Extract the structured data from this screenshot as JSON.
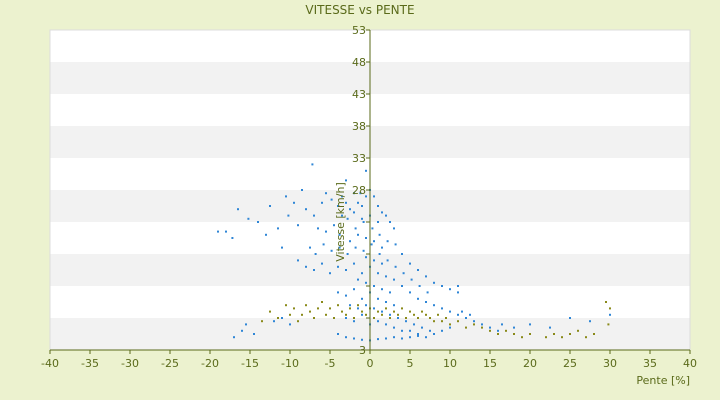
{
  "chart_data": {
    "type": "scatter",
    "title": "VITESSE vs PENTE",
    "xlabel": "Pente [%]",
    "ylabel": "Vitesse [km/h]",
    "xlim": [
      -40,
      40
    ],
    "ylim": [
      3,
      53
    ],
    "x_ticks": [
      -40,
      -35,
      -30,
      -25,
      -20,
      -15,
      -10,
      -5,
      0,
      5,
      10,
      15,
      20,
      25,
      30,
      35,
      40
    ],
    "y_ticks": [
      3,
      8,
      13,
      18,
      23,
      28,
      33,
      38,
      43,
      48,
      53
    ],
    "x_tick_labels": [
      "-40",
      "-35",
      "-30",
      "-25",
      "-20",
      "-15",
      "-10",
      "-5",
      "0",
      "5",
      "10",
      "15",
      "20",
      "25",
      "30",
      "35",
      "40"
    ],
    "y_tick_labels": [
      "3",
      "",
      "",
      "",
      "",
      "28",
      "33",
      "38",
      "43",
      "48",
      "53"
    ],
    "grid": "horizontal alternating bands",
    "legend": "none",
    "colors": {
      "background": "#ecf2cf",
      "plot_band_light": "#ffffff",
      "plot_band_dark": "#f2f2f2",
      "axis": "#5a6a1a",
      "series_1": "#2f86d6",
      "series_2": "#8a8a1a"
    },
    "series": [
      {
        "values": [
          [
            -0.5,
            31.0
          ],
          [
            -7.2,
            32.0
          ],
          [
            -3.0,
            29.5
          ],
          [
            -1.2,
            27.5
          ],
          [
            -8.5,
            28.0
          ],
          [
            -10.5,
            27.0
          ],
          [
            -12.5,
            25.5
          ],
          [
            -16.5,
            25.0
          ],
          [
            -15.2,
            23.5
          ],
          [
            -18.0,
            21.5
          ],
          [
            -17.2,
            20.5
          ],
          [
            -19.0,
            21.5
          ],
          [
            -14.0,
            23.0
          ],
          [
            -13.0,
            21.0
          ],
          [
            -11.5,
            22.0
          ],
          [
            -9.5,
            26.0
          ],
          [
            -10.2,
            24.0
          ],
          [
            -11.0,
            19.0
          ],
          [
            -9.0,
            22.5
          ],
          [
            -8.0,
            25.0
          ],
          [
            -7.0,
            24.0
          ],
          [
            -6.0,
            26.0
          ],
          [
            -5.5,
            27.5
          ],
          [
            -4.8,
            26.5
          ],
          [
            -4.0,
            25.5
          ],
          [
            -3.5,
            27.0
          ],
          [
            -3.0,
            26.0
          ],
          [
            -2.5,
            25.0
          ],
          [
            -2.0,
            27.5
          ],
          [
            -1.5,
            26.0
          ],
          [
            -1.0,
            25.5
          ],
          [
            -0.5,
            27.0
          ],
          [
            0.0,
            28.0
          ],
          [
            0.5,
            27.0
          ],
          [
            1.0,
            25.5
          ],
          [
            1.5,
            24.5
          ],
          [
            2.0,
            24.0
          ],
          [
            2.5,
            23.0
          ],
          [
            3.0,
            22.0
          ],
          [
            -6.5,
            22.0
          ],
          [
            -5.5,
            21.5
          ],
          [
            -4.5,
            22.5
          ],
          [
            -3.8,
            21.0
          ],
          [
            -2.8,
            23.5
          ],
          [
            -1.8,
            22.0
          ],
          [
            -0.8,
            23.0
          ],
          [
            0.3,
            22.0
          ],
          [
            1.2,
            21.0
          ],
          [
            2.2,
            20.0
          ],
          [
            3.2,
            19.5
          ],
          [
            4.0,
            18.0
          ],
          [
            5.0,
            16.5
          ],
          [
            6.0,
            15.5
          ],
          [
            7.0,
            14.5
          ],
          [
            8.0,
            13.5
          ],
          [
            9.0,
            13.0
          ],
          [
            10.0,
            12.5
          ],
          [
            11.0,
            12.0
          ],
          [
            -7.5,
            19.0
          ],
          [
            -6.8,
            18.0
          ],
          [
            -5.8,
            19.5
          ],
          [
            -4.8,
            18.5
          ],
          [
            -3.8,
            19.0
          ],
          [
            -2.8,
            18.0
          ],
          [
            -1.8,
            19.0
          ],
          [
            -0.8,
            18.5
          ],
          [
            0.2,
            19.5
          ],
          [
            1.2,
            18.0
          ],
          [
            2.2,
            17.0
          ],
          [
            3.2,
            16.0
          ],
          [
            4.2,
            15.0
          ],
          [
            5.2,
            14.0
          ],
          [
            6.2,
            13.0
          ],
          [
            7.2,
            12.0
          ],
          [
            -9.0,
            17.0
          ],
          [
            -8.0,
            16.0
          ],
          [
            -7.0,
            15.5
          ],
          [
            -6.0,
            16.5
          ],
          [
            -5.0,
            15.0
          ],
          [
            -4.0,
            16.0
          ],
          [
            -3.0,
            15.5
          ],
          [
            -2.0,
            16.5
          ],
          [
            -1.0,
            15.0
          ],
          [
            0.0,
            16.0
          ],
          [
            1.0,
            15.0
          ],
          [
            2.0,
            14.5
          ],
          [
            3.0,
            14.0
          ],
          [
            4.0,
            13.0
          ],
          [
            5.0,
            12.0
          ],
          [
            6.0,
            11.0
          ],
          [
            7.0,
            10.5
          ],
          [
            8.0,
            10.0
          ],
          [
            9.0,
            9.5
          ],
          [
            10.0,
            9.0
          ],
          [
            11.0,
            8.5
          ],
          [
            12.0,
            8.0
          ],
          [
            13.0,
            7.5
          ],
          [
            14.0,
            7.0
          ],
          [
            15.0,
            6.5
          ],
          [
            16.0,
            6.0
          ],
          [
            -4.0,
            12.0
          ],
          [
            -3.0,
            11.5
          ],
          [
            -2.0,
            12.5
          ],
          [
            -1.0,
            11.0
          ],
          [
            0.0,
            12.0
          ],
          [
            1.0,
            11.0
          ],
          [
            2.0,
            10.5
          ],
          [
            3.0,
            10.0
          ],
          [
            -3.0,
            8.0
          ],
          [
            -2.0,
            7.5
          ],
          [
            -1.0,
            8.5
          ],
          [
            0.0,
            7.0
          ],
          [
            1.0,
            7.5
          ],
          [
            2.0,
            7.0
          ],
          [
            3.0,
            6.5
          ],
          [
            4.0,
            6.0
          ],
          [
            5.0,
            6.0
          ],
          [
            6.0,
            5.5
          ],
          [
            -4.0,
            5.5
          ],
          [
            -3.0,
            5.0
          ],
          [
            -2.0,
            4.8
          ],
          [
            -1.0,
            4.6
          ],
          [
            0.0,
            4.5
          ],
          [
            1.0,
            4.7
          ],
          [
            2.0,
            4.8
          ],
          [
            3.0,
            5.0
          ],
          [
            4.0,
            4.8
          ],
          [
            5.0,
            5.0
          ],
          [
            6.0,
            5.2
          ],
          [
            7.0,
            5.0
          ],
          [
            8.0,
            5.5
          ],
          [
            9.0,
            6.0
          ],
          [
            10.0,
            6.5
          ],
          [
            11.5,
            9.0
          ],
          [
            12.5,
            8.5
          ],
          [
            11.0,
            13.0
          ],
          [
            -14.5,
            5.5
          ],
          [
            -16.0,
            6.0
          ],
          [
            -15.5,
            7.0
          ],
          [
            -17.0,
            5.0
          ],
          [
            -12.0,
            7.5
          ],
          [
            -11.0,
            8.0
          ],
          [
            -10.0,
            7.0
          ],
          [
            -2.5,
            20.0
          ],
          [
            -1.5,
            21.0
          ],
          [
            -0.5,
            20.5
          ],
          [
            0.5,
            20.0
          ],
          [
            1.5,
            19.0
          ],
          [
            -3.5,
            24.0
          ],
          [
            -2.0,
            24.5
          ],
          [
            -1.0,
            23.5
          ],
          [
            0.0,
            24.0
          ],
          [
            1.0,
            23.0
          ],
          [
            -0.5,
            17.5
          ],
          [
            0.5,
            17.0
          ],
          [
            1.5,
            16.5
          ],
          [
            -1.5,
            14.0
          ],
          [
            -0.5,
            13.5
          ],
          [
            0.5,
            13.0
          ],
          [
            1.5,
            12.5
          ],
          [
            2.5,
            12.0
          ],
          [
            -2.5,
            10.0
          ],
          [
            -1.5,
            9.5
          ],
          [
            -0.5,
            10.0
          ],
          [
            0.5,
            9.5
          ],
          [
            1.5,
            9.0
          ],
          [
            2.5,
            8.5
          ],
          [
            3.5,
            8.0
          ],
          [
            4.5,
            7.5
          ],
          [
            5.5,
            7.0
          ],
          [
            6.5,
            6.5
          ],
          [
            7.5,
            6.0
          ],
          [
            20.0,
            7.0
          ],
          [
            22.5,
            6.5
          ],
          [
            25.0,
            8.0
          ],
          [
            27.5,
            7.5
          ],
          [
            30.0,
            8.5
          ],
          [
            16.5,
            7.0
          ],
          [
            18.0,
            6.5
          ]
        ]
      },
      {
        "values": [
          [
            -13.5,
            7.5
          ],
          [
            -12.5,
            9.0
          ],
          [
            -11.5,
            8.0
          ],
          [
            -10.5,
            10.0
          ],
          [
            -10.0,
            8.5
          ],
          [
            -9.5,
            9.5
          ],
          [
            -9.0,
            7.5
          ],
          [
            -8.5,
            8.5
          ],
          [
            -8.0,
            10.0
          ],
          [
            -7.5,
            9.0
          ],
          [
            -7.0,
            8.0
          ],
          [
            -6.5,
            9.5
          ],
          [
            -6.0,
            10.5
          ],
          [
            -5.5,
            8.5
          ],
          [
            -5.0,
            9.5
          ],
          [
            -4.5,
            8.0
          ],
          [
            -4.0,
            10.0
          ],
          [
            -3.5,
            9.0
          ],
          [
            -3.0,
            8.5
          ],
          [
            -2.5,
            9.5
          ],
          [
            -2.0,
            8.0
          ],
          [
            -1.5,
            10.0
          ],
          [
            -1.0,
            9.0
          ],
          [
            -0.5,
            8.5
          ],
          [
            0.0,
            9.5
          ],
          [
            0.5,
            8.0
          ],
          [
            1.0,
            9.0
          ],
          [
            1.5,
            8.5
          ],
          [
            2.0,
            9.5
          ],
          [
            2.5,
            8.0
          ],
          [
            3.0,
            9.0
          ],
          [
            3.5,
            8.5
          ],
          [
            4.0,
            9.5
          ],
          [
            4.5,
            8.0
          ],
          [
            5.0,
            9.0
          ],
          [
            5.5,
            8.5
          ],
          [
            6.0,
            8.0
          ],
          [
            6.5,
            9.0
          ],
          [
            7.0,
            8.5
          ],
          [
            7.5,
            8.0
          ],
          [
            8.0,
            7.5
          ],
          [
            8.5,
            8.5
          ],
          [
            9.0,
            7.5
          ],
          [
            9.5,
            8.0
          ],
          [
            10.0,
            7.0
          ],
          [
            11.0,
            7.5
          ],
          [
            12.0,
            6.5
          ],
          [
            13.0,
            7.0
          ],
          [
            14.0,
            6.5
          ],
          [
            15.0,
            6.0
          ],
          [
            16.0,
            5.5
          ],
          [
            17.0,
            6.0
          ],
          [
            18.0,
            5.5
          ],
          [
            19.0,
            5.0
          ],
          [
            20.0,
            5.5
          ],
          [
            22.0,
            5.0
          ],
          [
            23.0,
            5.5
          ],
          [
            24.0,
            5.0
          ],
          [
            25.0,
            5.5
          ],
          [
            26.0,
            6.0
          ],
          [
            27.0,
            5.0
          ],
          [
            28.0,
            5.5
          ],
          [
            29.5,
            10.5
          ],
          [
            30.0,
            9.5
          ],
          [
            29.8,
            7.0
          ]
        ]
      }
    ]
  }
}
